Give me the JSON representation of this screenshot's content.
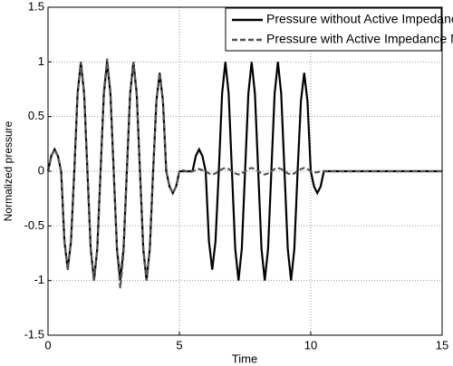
{
  "chart_data": {
    "type": "line",
    "x_label": "Time",
    "y_label": "Normalized pressure",
    "xlim": [
      0,
      15
    ],
    "ylim": [
      -1.5,
      1.5
    ],
    "xticks": [
      0,
      5,
      10,
      15
    ],
    "yticks": [
      -1.5,
      -1,
      -0.5,
      0,
      0.5,
      1,
      1.5
    ],
    "grid": true,
    "legend": "upper right",
    "x": [
      0,
      0.125,
      0.25,
      0.375,
      0.5,
      0.625,
      0.75,
      0.875,
      1,
      1.125,
      1.25,
      1.375,
      1.5,
      1.625,
      1.75,
      1.875,
      2,
      2.125,
      2.25,
      2.375,
      2.5,
      2.625,
      2.75,
      2.875,
      3,
      3.125,
      3.25,
      3.375,
      3.5,
      3.625,
      3.75,
      3.875,
      4,
      4.125,
      4.25,
      4.375,
      4.5,
      4.625,
      4.75,
      4.875,
      5,
      5.125,
      5.25,
      5.375,
      5.5,
      5.625,
      5.75,
      5.875,
      6,
      6.125,
      6.25,
      6.375,
      6.5,
      6.625,
      6.75,
      6.875,
      7,
      7.125,
      7.25,
      7.375,
      7.5,
      7.625,
      7.75,
      7.875,
      8,
      8.125,
      8.25,
      8.375,
      8.5,
      8.625,
      8.75,
      8.875,
      9,
      9.125,
      9.25,
      9.375,
      9.5,
      9.625,
      9.75,
      9.875,
      10,
      10.125,
      10.25,
      10.375,
      10.5,
      11,
      12,
      13,
      14,
      15
    ],
    "series": [
      {
        "name": "Pressure without Active Impedance Matching",
        "color": "#000000",
        "dash": "solid",
        "values": [
          0,
          0.14,
          0.2,
          0.14,
          0,
          -0.64,
          -0.9,
          -0.64,
          0,
          0.71,
          1,
          0.71,
          0,
          -0.71,
          -1,
          -0.71,
          0,
          0.71,
          1,
          0.71,
          0,
          -0.71,
          -1,
          -0.71,
          0,
          0.71,
          1,
          0.71,
          0,
          -0.71,
          -1,
          -0.71,
          0,
          0.64,
          0.9,
          0.64,
          0,
          -0.14,
          -0.2,
          -0.14,
          0,
          0,
          0,
          0,
          0,
          0.14,
          0.2,
          0.14,
          0,
          -0.64,
          -0.9,
          -0.64,
          0,
          0.71,
          1,
          0.71,
          0,
          -0.71,
          -1,
          -0.71,
          0,
          0.71,
          1,
          0.71,
          0,
          -0.71,
          -1,
          -0.71,
          0,
          0.71,
          1,
          0.71,
          0,
          -0.71,
          -1,
          -0.71,
          0,
          0.64,
          0.9,
          0.64,
          0,
          -0.14,
          -0.2,
          -0.14,
          0,
          0,
          0,
          0,
          0,
          0
        ]
      },
      {
        "name": "Pressure with Active Impedance Matching",
        "color": "#555555",
        "dash": "dashed",
        "values": [
          0,
          0.14,
          0.2,
          0.14,
          0,
          -0.64,
          -0.9,
          -0.64,
          0,
          0.71,
          1,
          0.71,
          0,
          -0.71,
          -1,
          -0.71,
          0,
          0.73,
          1.03,
          0.73,
          0,
          -0.72,
          -1.07,
          -0.75,
          0,
          0.71,
          1,
          0.71,
          0,
          -0.71,
          -1,
          -0.71,
          0,
          0.64,
          0.9,
          0.64,
          0,
          -0.14,
          -0.2,
          -0.14,
          0,
          0.01,
          0,
          -0.01,
          0,
          0.01,
          0.02,
          0.01,
          0,
          -0.02,
          -0.03,
          -0.02,
          0,
          0.02,
          0.03,
          0.02,
          0,
          -0.02,
          -0.03,
          -0.02,
          0,
          0.02,
          0.03,
          0.02,
          0,
          -0.02,
          -0.03,
          -0.02,
          0,
          0.02,
          0.03,
          0.02,
          0,
          -0.02,
          -0.03,
          -0.02,
          0,
          0.02,
          0.03,
          0.02,
          0,
          -0.01,
          -0.01,
          0,
          0,
          0,
          0,
          0,
          0,
          0
        ]
      }
    ]
  }
}
